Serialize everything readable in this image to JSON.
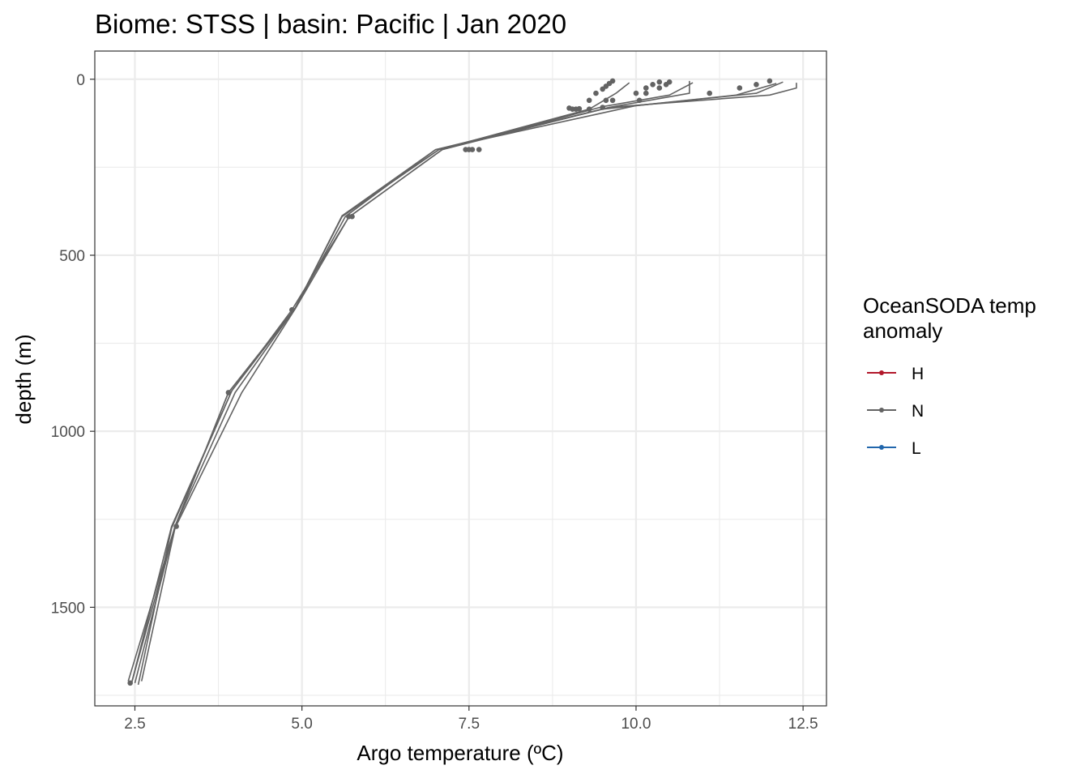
{
  "chart_data": {
    "type": "line",
    "title": "Biome: STSS | basin: Pacific  | Jan 2020",
    "xlabel": "Argo temperature (ºC)",
    "ylabel": "depth (m)",
    "xlim": [
      1.9,
      12.85
    ],
    "ylim": [
      1780,
      -80
    ],
    "y_reversed": true,
    "x_ticks": [
      2.5,
      5.0,
      7.5,
      10.0,
      12.5
    ],
    "x_tick_labels": [
      "2.5",
      "5.0",
      "7.5",
      "10.0",
      "12.5"
    ],
    "x_minor": [
      3.75,
      6.25,
      8.75,
      11.25
    ],
    "y_ticks": [
      0,
      500,
      1000,
      1500
    ],
    "y_tick_labels": [
      "0",
      "500",
      "1000",
      "1500"
    ],
    "y_minor": [
      250,
      750,
      1250,
      1750
    ],
    "grid": true,
    "legend": {
      "title_lines": [
        "OceanSODA temp",
        "anomaly"
      ],
      "position": "right",
      "entries": [
        {
          "label": "H",
          "color": "#b2182b"
        },
        {
          "label": "N",
          "color": "#636363"
        },
        {
          "label": "L",
          "color": "#2166ac"
        }
      ]
    },
    "line_color": "#636363",
    "series": [
      {
        "points": [
          [
            9.9,
            10
          ],
          [
            9.7,
            40
          ],
          [
            9.3,
            85
          ],
          [
            7.05,
            200
          ],
          [
            5.6,
            390
          ],
          [
            4.9,
            650
          ],
          [
            4.0,
            890
          ],
          [
            3.1,
            1270
          ],
          [
            2.45,
            1715
          ]
        ]
      },
      {
        "points": [
          [
            10.8,
            5
          ],
          [
            10.8,
            40
          ],
          [
            9.6,
            80
          ],
          [
            7.0,
            200
          ],
          [
            5.65,
            390
          ],
          [
            4.9,
            650
          ],
          [
            3.9,
            890
          ],
          [
            3.1,
            1270
          ],
          [
            2.5,
            1715
          ]
        ]
      },
      {
        "points": [
          [
            10.85,
            10
          ],
          [
            10.5,
            45
          ],
          [
            9.5,
            78
          ],
          [
            7.1,
            200
          ],
          [
            5.7,
            392
          ],
          [
            4.85,
            655
          ],
          [
            3.95,
            885
          ],
          [
            3.05,
            1275
          ],
          [
            2.55,
            1720
          ]
        ]
      },
      {
        "points": [
          [
            12.1,
            12
          ],
          [
            11.5,
            45
          ],
          [
            10.0,
            75
          ],
          [
            7.0,
            200
          ],
          [
            5.6,
            388
          ],
          [
            4.9,
            650
          ],
          [
            3.95,
            885
          ],
          [
            3.05,
            1270
          ],
          [
            2.45,
            1715
          ]
        ]
      },
      {
        "points": [
          [
            12.2,
            8
          ],
          [
            11.8,
            40
          ],
          [
            9.5,
            85
          ],
          [
            7.05,
            200
          ],
          [
            5.6,
            390
          ],
          [
            4.9,
            650
          ],
          [
            3.9,
            890
          ],
          [
            3.1,
            1270
          ],
          [
            2.4,
            1710
          ]
        ]
      },
      {
        "points": [
          [
            12.4,
            10
          ],
          [
            12.4,
            25
          ],
          [
            12.0,
            45
          ],
          [
            9.6,
            80
          ],
          [
            7.1,
            200
          ],
          [
            5.7,
            392
          ],
          [
            4.9,
            652
          ],
          [
            4.1,
            890
          ],
          [
            3.1,
            1275
          ],
          [
            2.6,
            1710
          ]
        ]
      }
    ],
    "points": [
      [
        9.65,
        5
      ],
      [
        9.6,
        12
      ],
      [
        9.55,
        20
      ],
      [
        9.5,
        28
      ],
      [
        9.4,
        40
      ],
      [
        9.55,
        60
      ],
      [
        9.3,
        60
      ],
      [
        9.65,
        60
      ],
      [
        9.5,
        80
      ],
      [
        9.3,
        85
      ],
      [
        9.0,
        82
      ],
      [
        9.1,
        85
      ],
      [
        9.05,
        85
      ],
      [
        9.15,
        84
      ],
      [
        10.35,
        8
      ],
      [
        10.5,
        8
      ],
      [
        10.25,
        15
      ],
      [
        10.45,
        15
      ],
      [
        10.15,
        25
      ],
      [
        10.35,
        25
      ],
      [
        10.0,
        40
      ],
      [
        10.15,
        40
      ],
      [
        10.05,
        60
      ],
      [
        11.55,
        25
      ],
      [
        11.8,
        15
      ],
      [
        12.0,
        5
      ],
      [
        11.1,
        40
      ],
      [
        7.45,
        200
      ],
      [
        7.55,
        200
      ],
      [
        7.65,
        200
      ],
      [
        7.5,
        200
      ],
      [
        5.75,
        390
      ],
      [
        5.7,
        390
      ],
      [
        4.85,
        655
      ],
      [
        3.9,
        890
      ],
      [
        3.12,
        1270
      ],
      [
        2.43,
        1715
      ]
    ]
  }
}
